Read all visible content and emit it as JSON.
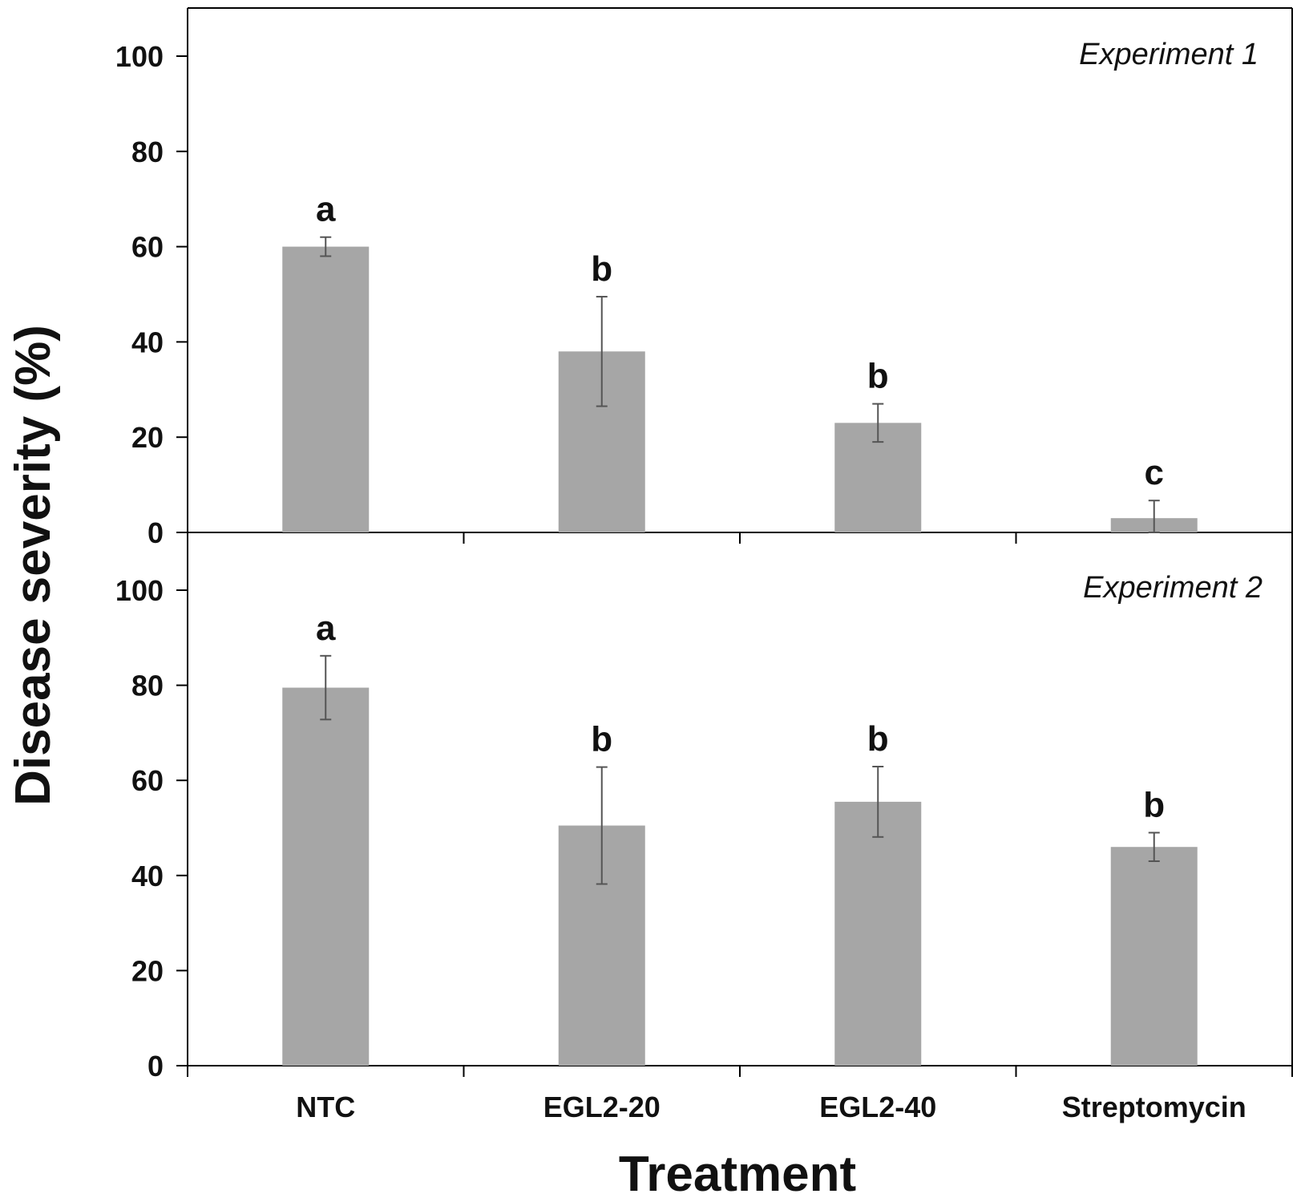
{
  "chart_data": [
    {
      "type": "bar",
      "title": "Experiment 1",
      "categories": [
        "NTC",
        "EGL2-20",
        "EGL2-40",
        "Streptomycin"
      ],
      "values": [
        60,
        38,
        23,
        3
      ],
      "error": [
        2,
        11.5,
        4,
        3.7
      ],
      "significance": [
        "a",
        "b",
        "b",
        "c"
      ],
      "ylim": [
        0,
        110
      ],
      "yticks": [
        0,
        20,
        40,
        60,
        80,
        100
      ],
      "tick_labels": [
        "0",
        "20",
        "40",
        "60",
        "80",
        "100"
      ],
      "bar_color": "#a6a6a6"
    },
    {
      "type": "bar",
      "title": "Experiment 2",
      "categories": [
        "NTC",
        "EGL2-20",
        "EGL2-40",
        "Streptomycin"
      ],
      "values": [
        79.5,
        50.5,
        55.5,
        46
      ],
      "error": [
        6.7,
        12.3,
        7.4,
        3
      ],
      "significance": [
        "a",
        "b",
        "b",
        "b"
      ],
      "ylim": [
        0,
        110
      ],
      "yticks": [
        0,
        20,
        40,
        60,
        80,
        100
      ],
      "tick_labels": [
        "0",
        "20",
        "40",
        "60",
        "80",
        "100"
      ],
      "bar_color": "#a6a6a6"
    }
  ],
  "xlabel": "Treatment",
  "ylabel": "Disease severity (%)",
  "colors": {
    "bar": "#a6a6a6",
    "axis": "#000000",
    "error_bar": "#555555"
  }
}
